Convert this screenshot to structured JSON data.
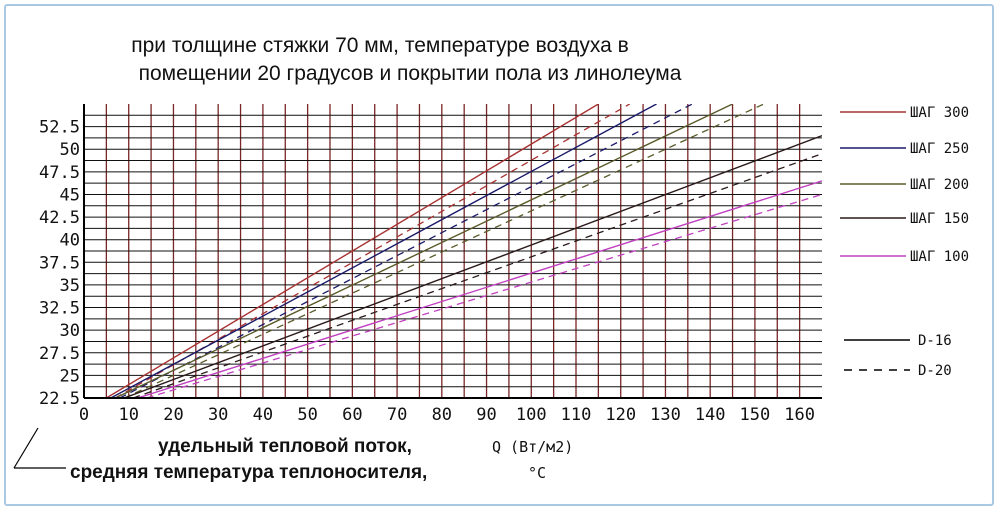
{
  "chart_data": {
    "type": "line",
    "title_line1": "при толщине стяжки 70 мм, температуре воздуха в",
    "title_line2": "помещении 20 градусов и покрытии пола из линолеума",
    "xlabel_main": "удельный тепловой поток,",
    "xlabel_unit": "Q (Вт/м2)",
    "ylabel_main": "средняя температура теплоносителя,",
    "ylabel_unit": "°C",
    "xlim": [
      0,
      165
    ],
    "ylim": [
      22.5,
      55
    ],
    "x_ticks": [
      0,
      10,
      20,
      30,
      40,
      50,
      60,
      70,
      80,
      90,
      100,
      110,
      120,
      130,
      140,
      150,
      160
    ],
    "y_ticks": [
      22.5,
      25,
      27.5,
      30,
      32.5,
      35,
      37.5,
      40,
      42.5,
      45,
      47.5,
      50,
      52.5
    ],
    "grid": true,
    "legend_position": "right",
    "series": [
      {
        "name": "ШАГ 300",
        "color": "#a83232",
        "solid": {
          "x": [
            5,
            115
          ],
          "y": [
            22.5,
            55
          ]
        },
        "dashed": {
          "x": [
            7,
            122
          ],
          "y": [
            22.5,
            55
          ]
        }
      },
      {
        "name": "ШАГ 250",
        "color": "#1a1a6a",
        "solid": {
          "x": [
            6,
            128
          ],
          "y": [
            22.5,
            55
          ]
        },
        "dashed": {
          "x": [
            8,
            136
          ],
          "y": [
            22.5,
            55
          ]
        }
      },
      {
        "name": "ШАГ 200",
        "color": "#5a5a2a",
        "solid": {
          "x": [
            7,
            145
          ],
          "y": [
            22.5,
            55
          ]
        },
        "dashed": {
          "x": [
            9,
            152
          ],
          "y": [
            22.5,
            55
          ]
        }
      },
      {
        "name": "ШАГ 150",
        "color": "#2a1a1a",
        "solid": {
          "x": [
            9,
            165
          ],
          "y": [
            22.5,
            51.5
          ]
        },
        "dashed": {
          "x": [
            11,
            165
          ],
          "y": [
            22.5,
            49.5
          ]
        }
      },
      {
        "name": "ШАГ 100",
        "color": "#c040c0",
        "solid": {
          "x": [
            12,
            165
          ],
          "y": [
            22.5,
            46.5
          ]
        },
        "dashed": {
          "x": [
            14,
            165
          ],
          "y": [
            22.5,
            45
          ]
        }
      }
    ],
    "line_style_legend": [
      {
        "label": "D-16",
        "style": "solid"
      },
      {
        "label": "D-20",
        "style": "dashed"
      }
    ]
  }
}
